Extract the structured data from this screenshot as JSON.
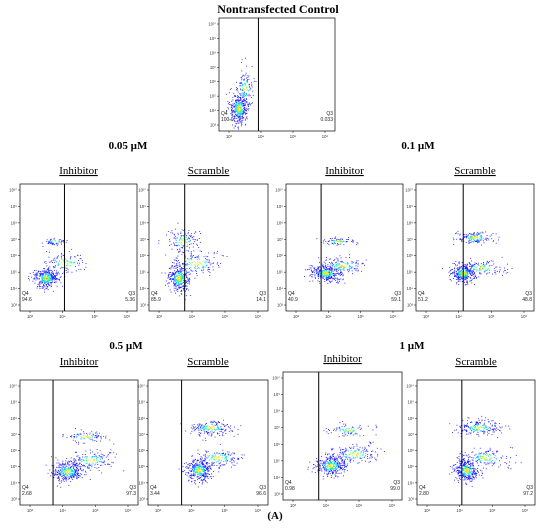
{
  "figure": {
    "panel_letter": "(A)",
    "headers": {
      "control": "Nontransfected Control",
      "dose_a": "0.05 µM",
      "dose_b": "0.1 µM",
      "dose_c": "0.5 µM",
      "dose_d": "1 µM"
    },
    "colors": {
      "density_low": "#1a1aff",
      "density_mid": "#00c8ff",
      "density_high": "#ffe000",
      "gate_line": "#000000"
    }
  },
  "chart_data": [
    {
      "type": "scatter",
      "id": "control",
      "label": "",
      "q4": "100.0",
      "q3": "0.033",
      "clusters": "control"
    },
    {
      "type": "scatter",
      "id": "p005_inh",
      "label": "Inhibitor",
      "q4": "94.6",
      "q3": "5.36",
      "clusters": "low_shift"
    },
    {
      "type": "scatter",
      "id": "p005_scr",
      "label": "Scramble",
      "q4": "85.9",
      "q3": "14.1",
      "clusters": "mid_shift"
    },
    {
      "type": "scatter",
      "id": "p01_inh",
      "label": "Inhibitor",
      "q4": "40.9",
      "q3": "59.1",
      "clusters": "half_shift"
    },
    {
      "type": "scatter",
      "id": "p01_scr",
      "label": "Scramble",
      "q4": "51.2",
      "q3": "48.8",
      "clusters": "half_shift_hi"
    },
    {
      "type": "scatter",
      "id": "p05_inh",
      "label": "Inhibitor",
      "q4": "2.68",
      "q3": "97.3",
      "clusters": "full_shift"
    },
    {
      "type": "scatter",
      "id": "p05_scr",
      "label": "Scramble",
      "q4": "3.44",
      "q3": "96.6",
      "clusters": "full_shift_hi"
    },
    {
      "type": "scatter",
      "id": "p1_inh",
      "label": "Inhibitor",
      "q4": "0.98",
      "q3": "99.0",
      "clusters": "full_shift"
    },
    {
      "type": "scatter",
      "id": "p1_scr",
      "label": "Scramble",
      "q4": "2.80",
      "q3": "97.2",
      "clusters": "full_shift_hi"
    }
  ],
  "axis": {
    "x_ticks": [
      "10³",
      "10⁴",
      "10⁵",
      "10⁶"
    ],
    "y_ticks": [
      "10³",
      "10⁴",
      "10⁵",
      "10⁶",
      "10⁷",
      "10⁸",
      "10⁹",
      "10¹⁰"
    ],
    "quadrant_left": "Q4",
    "quadrant_right": "Q3"
  }
}
